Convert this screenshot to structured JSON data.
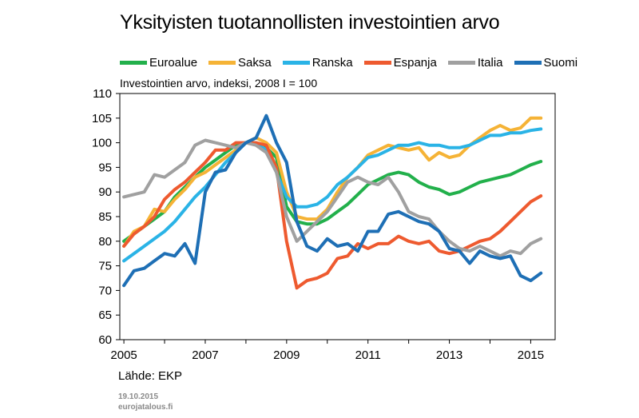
{
  "chart_data": {
    "type": "line",
    "title": "Yksityisten tuotannollisten investointien arvo",
    "subtitle": "Investointien arvo, indeksi, 2008 I = 100",
    "source": "Lähde: EKP",
    "date": "19.10.2015",
    "site": "eurojatalous.fi",
    "ylim": [
      60,
      110
    ],
    "yticks": [
      60,
      65,
      70,
      75,
      80,
      85,
      90,
      95,
      100,
      105,
      110
    ],
    "xlim": [
      2004.9,
      2015.6
    ],
    "xticks": [
      2005,
      2007,
      2009,
      2011,
      2013,
      2015
    ],
    "grid": false,
    "legend_position": "top",
    "series": [
      {
        "name": "Euroalue",
        "color": "#22b04b",
        "x": [
          2005.0,
          2005.25,
          2005.5,
          2005.75,
          2006.0,
          2006.25,
          2006.5,
          2006.75,
          2007.0,
          2007.25,
          2007.5,
          2007.75,
          2008.0,
          2008.25,
          2008.5,
          2008.75,
          2009.0,
          2009.25,
          2009.5,
          2009.75,
          2010.0,
          2010.25,
          2010.5,
          2010.75,
          2011.0,
          2011.25,
          2011.5,
          2011.75,
          2012.0,
          2012.25,
          2012.5,
          2012.75,
          2013.0,
          2013.25,
          2013.5,
          2013.75,
          2014.0,
          2014.25,
          2014.5,
          2014.75,
          2015.0,
          2015.25
        ],
        "values": [
          80,
          81.5,
          83,
          84.5,
          86,
          89,
          91,
          93,
          95,
          96.5,
          98,
          99.5,
          100,
          100,
          99,
          97,
          87,
          84,
          83.5,
          83.5,
          84.5,
          86,
          87.5,
          89.5,
          91.5,
          92.5,
          93.5,
          94,
          93.5,
          92,
          91,
          90.5,
          89.5,
          90,
          91,
          92,
          92.5,
          93,
          93.5,
          94.5,
          95.5,
          96.2
        ]
      },
      {
        "name": "Saksa",
        "color": "#f5b336",
        "x": [
          2005.0,
          2005.25,
          2005.5,
          2005.75,
          2006.0,
          2006.25,
          2006.5,
          2006.75,
          2007.0,
          2007.25,
          2007.5,
          2007.75,
          2008.0,
          2008.25,
          2008.5,
          2008.75,
          2009.0,
          2009.25,
          2009.5,
          2009.75,
          2010.0,
          2010.25,
          2010.5,
          2010.75,
          2011.0,
          2011.25,
          2011.5,
          2011.75,
          2012.0,
          2012.25,
          2012.5,
          2012.75,
          2013.0,
          2013.25,
          2013.5,
          2013.75,
          2014.0,
          2014.25,
          2014.5,
          2014.75,
          2015.0,
          2015.25
        ],
        "values": [
          79,
          82,
          83,
          86.5,
          86,
          88.5,
          90.5,
          93,
          94,
          95.5,
          97,
          98.5,
          100,
          101,
          100,
          98,
          90,
          85,
          84.5,
          84.5,
          86.5,
          90,
          93,
          95,
          97.5,
          98.5,
          99.5,
          99,
          98.5,
          99,
          96.5,
          98,
          97,
          97.5,
          99.5,
          101,
          102.5,
          103.5,
          102.5,
          103,
          105,
          105
        ]
      },
      {
        "name": "Ranska",
        "color": "#2ab3e6",
        "x": [
          2005.0,
          2005.25,
          2005.5,
          2005.75,
          2006.0,
          2006.25,
          2006.5,
          2006.75,
          2007.0,
          2007.25,
          2007.5,
          2007.75,
          2008.0,
          2008.25,
          2008.5,
          2008.75,
          2009.0,
          2009.25,
          2009.5,
          2009.75,
          2010.0,
          2010.25,
          2010.5,
          2010.75,
          2011.0,
          2011.25,
          2011.5,
          2011.75,
          2012.0,
          2012.25,
          2012.5,
          2012.75,
          2013.0,
          2013.25,
          2013.5,
          2013.75,
          2014.0,
          2014.25,
          2014.5,
          2014.75,
          2015.0,
          2015.25
        ],
        "values": [
          76,
          77.5,
          79,
          80.5,
          82,
          84,
          86.5,
          89,
          91,
          93.5,
          96,
          98,
          100,
          100,
          98.5,
          94,
          89,
          87,
          87,
          87.5,
          89,
          91.5,
          93,
          95,
          97,
          97.5,
          98.5,
          99.5,
          99.5,
          100,
          99.5,
          99.5,
          99,
          99,
          99.5,
          100.5,
          101.5,
          101.5,
          102,
          102,
          102.5,
          102.8
        ]
      },
      {
        "name": "Espanja",
        "color": "#ee5a2f",
        "x": [
          2005.0,
          2005.25,
          2005.5,
          2005.75,
          2006.0,
          2006.25,
          2006.5,
          2006.75,
          2007.0,
          2007.25,
          2007.5,
          2007.75,
          2008.0,
          2008.25,
          2008.5,
          2008.75,
          2009.0,
          2009.25,
          2009.5,
          2009.75,
          2010.0,
          2010.25,
          2010.5,
          2010.75,
          2011.0,
          2011.25,
          2011.5,
          2011.75,
          2012.0,
          2012.25,
          2012.5,
          2012.75,
          2013.0,
          2013.25,
          2013.5,
          2013.75,
          2014.0,
          2014.25,
          2014.5,
          2014.75,
          2015.0,
          2015.25
        ],
        "values": [
          79,
          81.5,
          83,
          85,
          88.5,
          90.5,
          92,
          94,
          96,
          98.5,
          98.5,
          100,
          100,
          100,
          99.5,
          95,
          80,
          70.5,
          72,
          72.5,
          73.5,
          76.5,
          77,
          79.5,
          78.5,
          79.5,
          79.5,
          81,
          80,
          79.5,
          80,
          78,
          77.5,
          78,
          79,
          80,
          80.5,
          82,
          84,
          86,
          88,
          89.2
        ]
      },
      {
        "name": "Italia",
        "color": "#a0a0a0",
        "x": [
          2005.0,
          2005.25,
          2005.5,
          2005.75,
          2006.0,
          2006.25,
          2006.5,
          2006.75,
          2007.0,
          2007.25,
          2007.5,
          2007.75,
          2008.0,
          2008.25,
          2008.5,
          2008.75,
          2009.0,
          2009.25,
          2009.5,
          2009.75,
          2010.0,
          2010.25,
          2010.5,
          2010.75,
          2011.0,
          2011.25,
          2011.5,
          2011.75,
          2012.0,
          2012.25,
          2012.5,
          2012.75,
          2013.0,
          2013.25,
          2013.5,
          2013.75,
          2014.0,
          2014.25,
          2014.5,
          2014.75,
          2015.0,
          2015.25
        ],
        "values": [
          89,
          89.5,
          90,
          93.5,
          93,
          94.5,
          96,
          99.5,
          100.5,
          100,
          99.5,
          99,
          100,
          99.5,
          98,
          94,
          85,
          80,
          82,
          84,
          86,
          89,
          92,
          93,
          92,
          91.5,
          93,
          90,
          86,
          85,
          84.5,
          82,
          80,
          78.5,
          78,
          79,
          78,
          77,
          78,
          77.5,
          79.5,
          80.5
        ]
      },
      {
        "name": "Suomi",
        "color": "#1e6fb5",
        "x": [
          2005.0,
          2005.25,
          2005.5,
          2005.75,
          2006.0,
          2006.25,
          2006.5,
          2006.75,
          2007.0,
          2007.25,
          2007.5,
          2007.75,
          2008.0,
          2008.25,
          2008.5,
          2008.75,
          2009.0,
          2009.25,
          2009.5,
          2009.75,
          2010.0,
          2010.25,
          2010.5,
          2010.75,
          2011.0,
          2011.25,
          2011.5,
          2011.75,
          2012.0,
          2012.25,
          2012.5,
          2012.75,
          2013.0,
          2013.25,
          2013.5,
          2013.75,
          2014.0,
          2014.25,
          2014.5,
          2014.75,
          2015.0,
          2015.25
        ],
        "values": [
          71,
          74,
          74.5,
          76,
          77.5,
          77,
          79.5,
          75.5,
          90,
          94,
          94.5,
          98,
          100,
          101,
          105.5,
          100,
          96,
          84,
          79,
          78,
          80.5,
          79,
          79.5,
          78,
          82,
          82,
          85.5,
          86,
          85,
          84,
          83.5,
          82,
          78.5,
          78,
          75.5,
          78,
          77,
          76.5,
          77,
          73,
          72,
          73.5
        ]
      }
    ]
  }
}
